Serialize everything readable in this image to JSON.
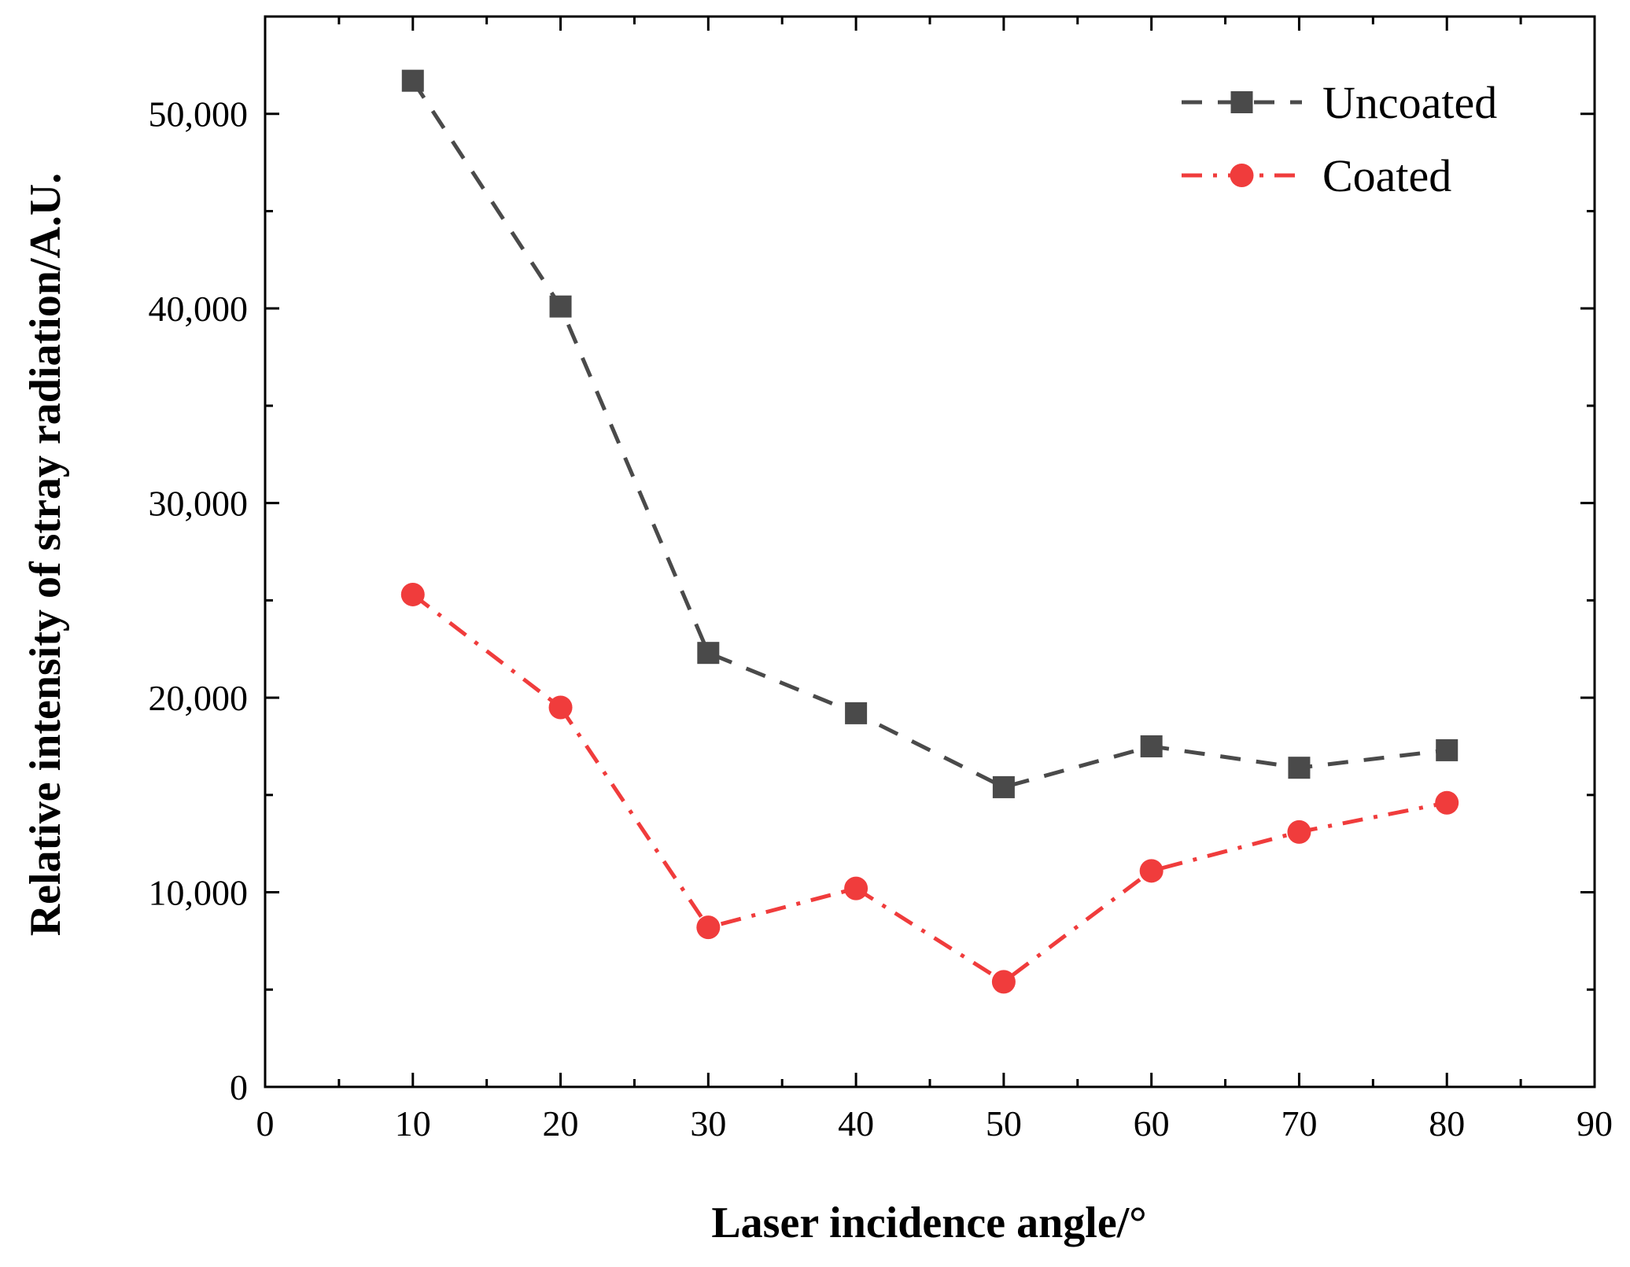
{
  "chart_data": {
    "type": "line",
    "title": "",
    "xlabel": "Laser incidence angle/°",
    "ylabel": "Relative intensity of stray radiation/A.U.",
    "xlim": [
      0,
      90
    ],
    "ylim": [
      0,
      55000
    ],
    "x_ticks": [
      0,
      10,
      20,
      30,
      40,
      50,
      60,
      70,
      80,
      90
    ],
    "x_tick_labels": [
      "0",
      "10",
      "20",
      "30",
      "40",
      "50",
      "60",
      "70",
      "80",
      "90"
    ],
    "y_ticks": [
      0,
      10000,
      20000,
      30000,
      40000,
      50000
    ],
    "y_tick_labels": [
      "0",
      "10,000",
      "20,000",
      "30,000",
      "40,000",
      "50,000"
    ],
    "x_minor_step": 5,
    "y_minor_step": 5000,
    "grid": false,
    "legend_position": "top-right",
    "series": [
      {
        "name": "Uncoated",
        "color": "#4a4a4a",
        "marker": "square",
        "line_style": "dashed",
        "x": [
          10,
          20,
          30,
          40,
          50,
          60,
          70,
          80
        ],
        "values": [
          51700,
          40100,
          22300,
          19200,
          15400,
          17500,
          16400,
          17300
        ]
      },
      {
        "name": "Coated",
        "color": "#f03c3c",
        "marker": "circle",
        "line_style": "dash-dot",
        "x": [
          10,
          20,
          30,
          40,
          50,
          60,
          70,
          80
        ],
        "values": [
          25300,
          19500,
          8200,
          10200,
          5400,
          11100,
          13100,
          14600
        ]
      }
    ]
  }
}
